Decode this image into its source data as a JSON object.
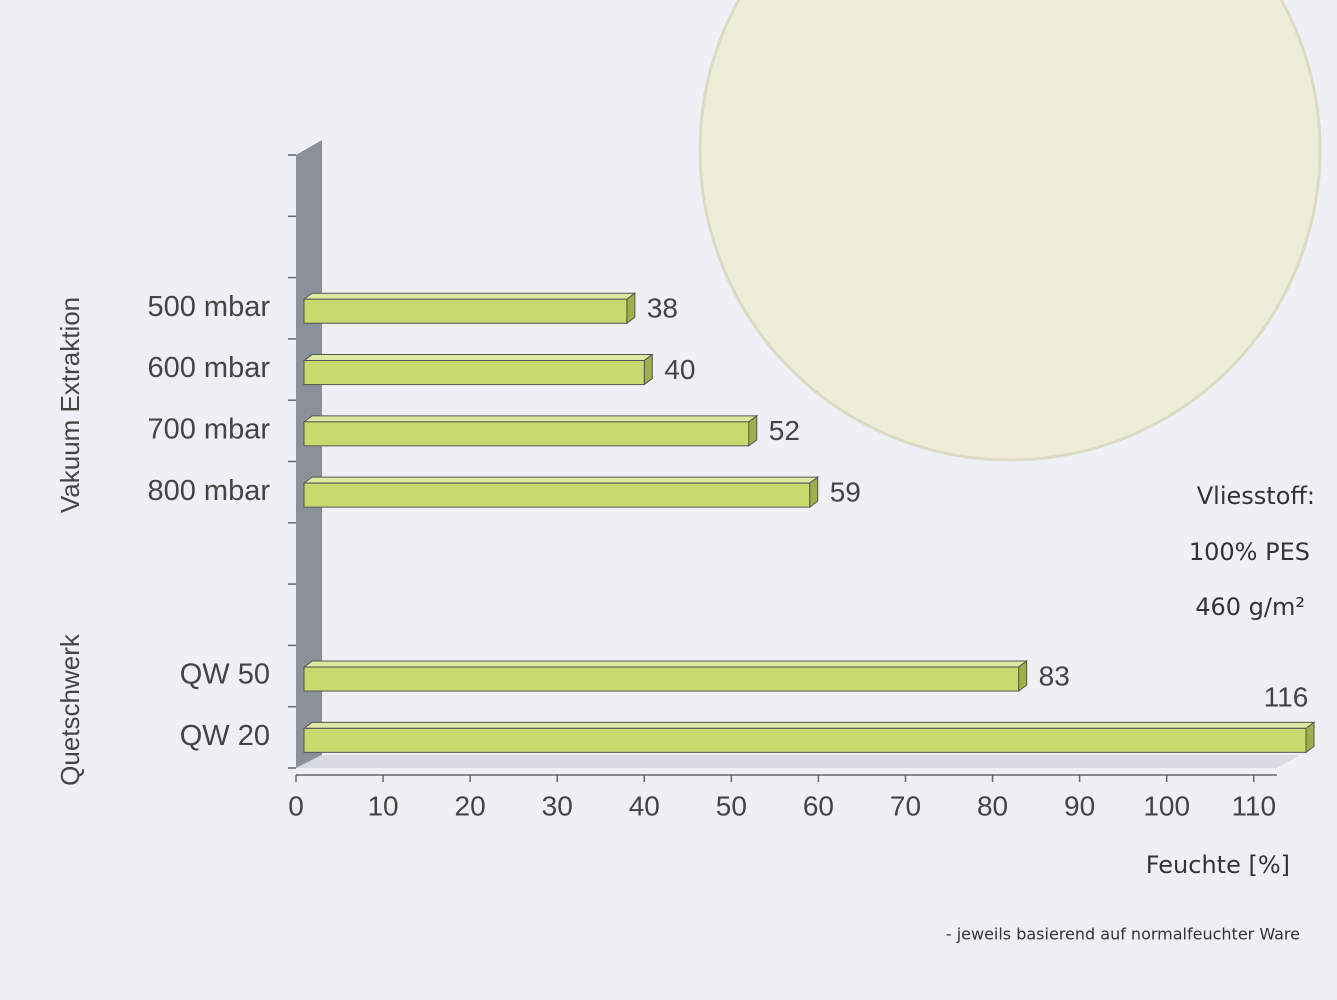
{
  "chart_data": {
    "type": "bar3d",
    "groups": [
      "Vakuum Extraktion",
      "Quetschwerk"
    ],
    "categories": [
      null,
      null,
      "500 mbar",
      "600 mbar",
      "700 mbar",
      "800 mbar",
      null,
      null,
      "QW 50",
      "QW 20"
    ],
    "values": [
      null,
      null,
      38,
      40,
      52,
      59,
      null,
      null,
      83,
      116
    ],
    "color": "#c8da6e",
    "xlim": [
      0,
      116
    ],
    "xticks": [
      0,
      10,
      20,
      30,
      40,
      50,
      60,
      70,
      80,
      90,
      100,
      110
    ],
    "xlabel": "Feuchte [%]",
    "annotations": [
      "Vliesstoff:",
      "100% PES",
      "460 g/m²"
    ],
    "footnote": "- jeweils basierend auf normalfeuchter Ware"
  }
}
